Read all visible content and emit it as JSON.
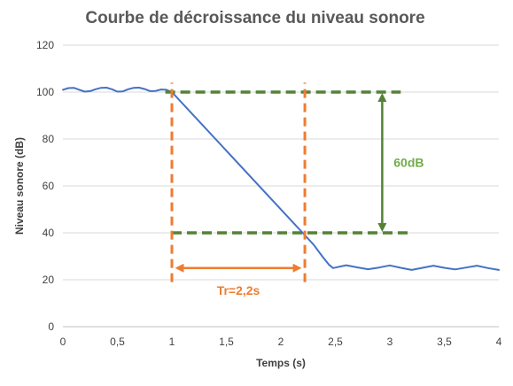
{
  "chart_data": {
    "type": "line",
    "title": "Courbe de décroissance du niveau sonore",
    "xlabel": "Temps (s)",
    "ylabel": "Niveau sonore (dB)",
    "xlim": [
      0,
      4
    ],
    "ylim": [
      0,
      120
    ],
    "xticks": [
      0,
      0.5,
      1,
      1.5,
      2,
      2.5,
      3,
      3.5,
      4
    ],
    "xtick_labels": [
      "0",
      "0,5",
      "1",
      "1,5",
      "2",
      "2,5",
      "3",
      "3,5",
      "4"
    ],
    "yticks": [
      0,
      20,
      40,
      60,
      80,
      100,
      120
    ],
    "ytick_labels": [
      "0",
      "20",
      "40",
      "60",
      "80",
      "100",
      "120"
    ],
    "grid": "horizontal",
    "series": [
      {
        "color": "#4472c4",
        "points": [
          [
            0,
            101
          ],
          [
            0.05,
            101.7
          ],
          [
            0.1,
            101.8
          ],
          [
            0.15,
            101
          ],
          [
            0.2,
            100.2
          ],
          [
            0.25,
            100.4
          ],
          [
            0.3,
            101.2
          ],
          [
            0.35,
            101.8
          ],
          [
            0.4,
            101.9
          ],
          [
            0.45,
            101.2
          ],
          [
            0.5,
            100.2
          ],
          [
            0.55,
            100.3
          ],
          [
            0.6,
            101.2
          ],
          [
            0.65,
            101.8
          ],
          [
            0.7,
            101.9
          ],
          [
            0.75,
            101.3
          ],
          [
            0.8,
            100.4
          ],
          [
            0.85,
            100.5
          ],
          [
            0.9,
            101.1
          ],
          [
            0.95,
            101
          ],
          [
            1,
            100
          ],
          [
            2.2,
            40
          ],
          [
            2.3,
            35
          ],
          [
            2.38,
            30
          ],
          [
            2.44,
            26.5
          ],
          [
            2.48,
            25
          ],
          [
            2.52,
            25.4
          ],
          [
            2.6,
            26.2
          ],
          [
            2.7,
            25.3
          ],
          [
            2.8,
            24.5
          ],
          [
            2.9,
            25.2
          ],
          [
            3,
            26.1
          ],
          [
            3.1,
            25.1
          ],
          [
            3.2,
            24.2
          ],
          [
            3.3,
            25.1
          ],
          [
            3.4,
            26
          ],
          [
            3.5,
            25.1
          ],
          [
            3.6,
            24.4
          ],
          [
            3.7,
            25.2
          ],
          [
            3.8,
            26
          ],
          [
            3.9,
            25
          ],
          [
            4,
            24.2
          ]
        ]
      }
    ],
    "annotations": {
      "level_lines": [
        {
          "y": 100,
          "x_from": 0.94,
          "x_to": 3.1,
          "color": "#548235",
          "style": "dashed"
        },
        {
          "y": 40,
          "x_from": 1.0,
          "x_to": 3.2,
          "color": "#548235",
          "style": "dashed"
        }
      ],
      "time_lines": [
        {
          "x": 1,
          "y_from": 19,
          "y_to": 104,
          "color": "#ed7d31",
          "style": "dashed"
        },
        {
          "x": 2.22,
          "y_from": 19,
          "y_to": 104,
          "color": "#ed7d31",
          "style": "dashed"
        }
      ],
      "level_arrow": {
        "x": 2.93,
        "y_from": 100,
        "y_to": 40,
        "label": "60dB",
        "color": "#70ad47"
      },
      "time_arrow": {
        "y": 25,
        "x_from": 1.02,
        "x_to": 2.2,
        "label": "Tr=2,2s",
        "color": "#ed7d31"
      }
    }
  }
}
